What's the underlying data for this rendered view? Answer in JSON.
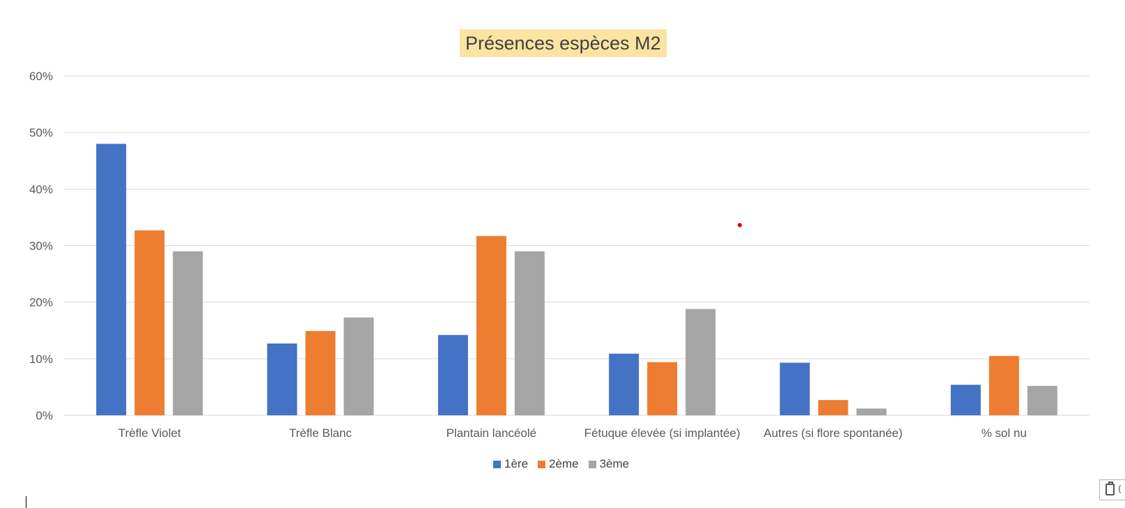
{
  "chart_data": {
    "type": "bar",
    "title": "Présences espèces M2",
    "categories": [
      "Trèfle Violet",
      "Trèfle Blanc",
      "Plantain lancéolé",
      "Fétuque élevée (si implantée)",
      "Autres (si flore spontanée)",
      "% sol nu"
    ],
    "series": [
      {
        "name": "1ère",
        "color": "#4472c4",
        "values": [
          0.48,
          0.127,
          0.142,
          0.109,
          0.093,
          0.054
        ]
      },
      {
        "name": "2ème",
        "color": "#ed7d31",
        "values": [
          0.327,
          0.149,
          0.317,
          0.094,
          0.027,
          0.105
        ]
      },
      {
        "name": "3ème",
        "color": "#a5a5a5",
        "values": [
          0.29,
          0.173,
          0.29,
          0.188,
          0.012,
          0.052
        ]
      }
    ],
    "yticks": [
      "0%",
      "10%",
      "20%",
      "30%",
      "40%",
      "50%",
      "60%"
    ],
    "ylim": [
      0,
      0.6
    ],
    "grid": true,
    "legend_position": "bottom",
    "xlabel": "",
    "ylabel": ""
  },
  "colors": {
    "title_background": "#fbe3a2",
    "gridline": "#d9d9d9",
    "axis_text": "#595959",
    "marker_dot": "#e00000"
  },
  "icons": {
    "paste_options": "clipboard-icon"
  }
}
